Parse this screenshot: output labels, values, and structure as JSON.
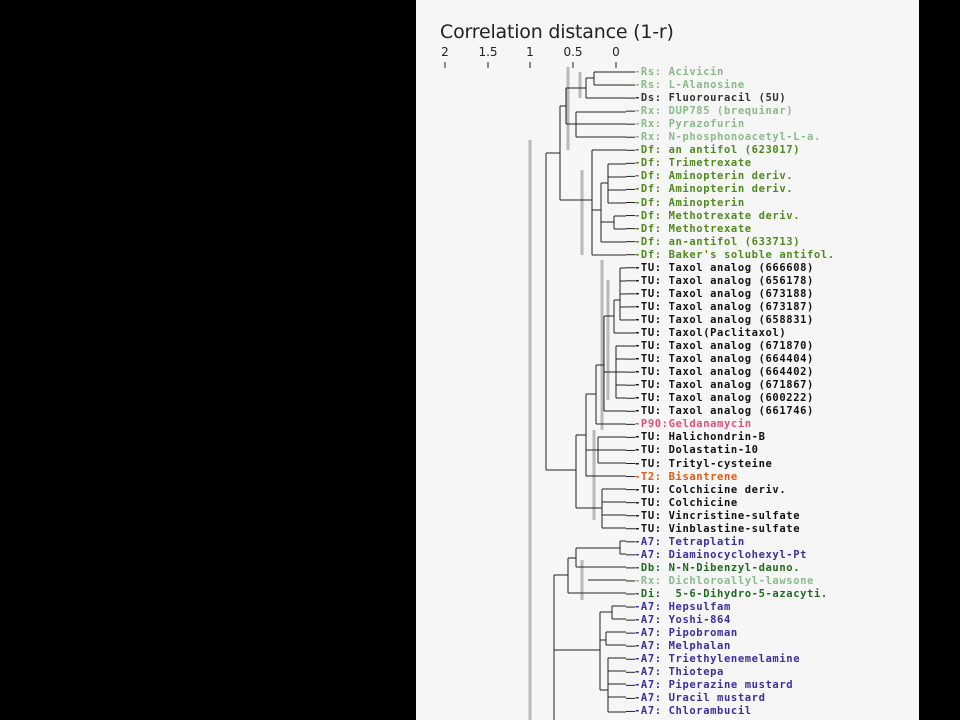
{
  "figure": {
    "title": "Correlation distance (1-r)",
    "axis_ticks": [
      "2",
      "1.5",
      "1",
      "0.5",
      "0"
    ]
  },
  "colors": {
    "Rs": "#88bb88",
    "Rx": "#88bb88",
    "Ds": "#333333",
    "Df": "#4f8a1f",
    "TU": "#111111",
    "P90": "#e0507a",
    "T2": "#e05a18",
    "A7": "#3a2f9c",
    "Db": "#1f6a1f",
    "Di": "#1f6a1f"
  },
  "leaves": [
    {
      "text": "-Rs: Acivicin",
      "cat": "Rs"
    },
    {
      "text": "-Rs: L-Alanosine",
      "cat": "Rs"
    },
    {
      "text": "-Ds: Fluorouracil (5U)",
      "cat": "Ds"
    },
    {
      "text": "-Rx: DUP785 (brequinar)",
      "cat": "Rx"
    },
    {
      "text": "-Rx: Pyrazofurin",
      "cat": "Rx"
    },
    {
      "text": "-Rx: N-phosphonoacetyl-L-a.",
      "cat": "Rx"
    },
    {
      "text": "-Df: an antifol (623017)",
      "cat": "Df"
    },
    {
      "text": "-Df: Trimetrexate",
      "cat": "Df"
    },
    {
      "text": "-Df: Aminopterin deriv.",
      "cat": "Df"
    },
    {
      "text": "-Df: Aminopterin deriv.",
      "cat": "Df"
    },
    {
      "text": "-Df: Aminopterin",
      "cat": "Df"
    },
    {
      "text": "-Df: Methotrexate deriv.",
      "cat": "Df"
    },
    {
      "text": "-Df: Methotrexate",
      "cat": "Df"
    },
    {
      "text": "-Df: an-antifol (633713)",
      "cat": "Df"
    },
    {
      "text": "-Df: Baker's soluble antifol.",
      "cat": "Df"
    },
    {
      "text": "-TU: Taxol analog (666608)",
      "cat": "TU"
    },
    {
      "text": "-TU: Taxol analog (656178)",
      "cat": "TU"
    },
    {
      "text": "-TU: Taxol analog (673188)",
      "cat": "TU"
    },
    {
      "text": "-TU: Taxol analog (673187)",
      "cat": "TU"
    },
    {
      "text": "-TU: Taxol analog (658831)",
      "cat": "TU"
    },
    {
      "text": "-TU: Taxol(Paclitaxol)",
      "cat": "TU"
    },
    {
      "text": "-TU: Taxol analog (671870)",
      "cat": "TU"
    },
    {
      "text": "-TU: Taxol analog (664404)",
      "cat": "TU"
    },
    {
      "text": "-TU: Taxol analog (664402)",
      "cat": "TU"
    },
    {
      "text": "-TU: Taxol analog (671867)",
      "cat": "TU"
    },
    {
      "text": "-TU: Taxol analog (600222)",
      "cat": "TU"
    },
    {
      "text": "-TU: Taxol analog (661746)",
      "cat": "TU"
    },
    {
      "text": "-P90:Geldanamycin",
      "cat": "P90"
    },
    {
      "text": "-TU: Halichondrin-B",
      "cat": "TU"
    },
    {
      "text": "-TU: Dolastatin-10",
      "cat": "TU"
    },
    {
      "text": "-TU: Trityl-cysteine",
      "cat": "TU"
    },
    {
      "text": "-T2: Bisantrene",
      "cat": "T2"
    },
    {
      "text": "-TU: Colchicine deriv.",
      "cat": "TU"
    },
    {
      "text": "-TU: Colchicine",
      "cat": "TU"
    },
    {
      "text": "-TU: Vincristine-sulfate",
      "cat": "TU"
    },
    {
      "text": "-TU: Vinblastine-sulfate",
      "cat": "TU"
    },
    {
      "text": "-A7: Tetraplatin",
      "cat": "A7"
    },
    {
      "text": "-A7: Diaminocyclohexyl-Pt",
      "cat": "A7"
    },
    {
      "text": "-Db: N-N-Dibenzyl-dauno.",
      "cat": "Db"
    },
    {
      "text": "-Rx: Dichloroallyl-lawsone",
      "cat": "Rx"
    },
    {
      "text": "-Di:  5-6-Dihydro-5-azacyti.",
      "cat": "Di"
    },
    {
      "text": "-A7: Hepsulfam",
      "cat": "A7"
    },
    {
      "text": "-A7: Yoshi-864",
      "cat": "A7"
    },
    {
      "text": "-A7: Pipobroman",
      "cat": "A7"
    },
    {
      "text": "-A7: Melphalan",
      "cat": "A7"
    },
    {
      "text": "-A7: Triethylenemelamine",
      "cat": "A7"
    },
    {
      "text": "-A7: Thiotepa",
      "cat": "A7"
    },
    {
      "text": "-A7: Piperazine mustard",
      "cat": "A7"
    },
    {
      "text": "-A7: Uracil mustard",
      "cat": "A7"
    },
    {
      "text": "-A7: Chlorambucil",
      "cat": "A7"
    }
  ]
}
